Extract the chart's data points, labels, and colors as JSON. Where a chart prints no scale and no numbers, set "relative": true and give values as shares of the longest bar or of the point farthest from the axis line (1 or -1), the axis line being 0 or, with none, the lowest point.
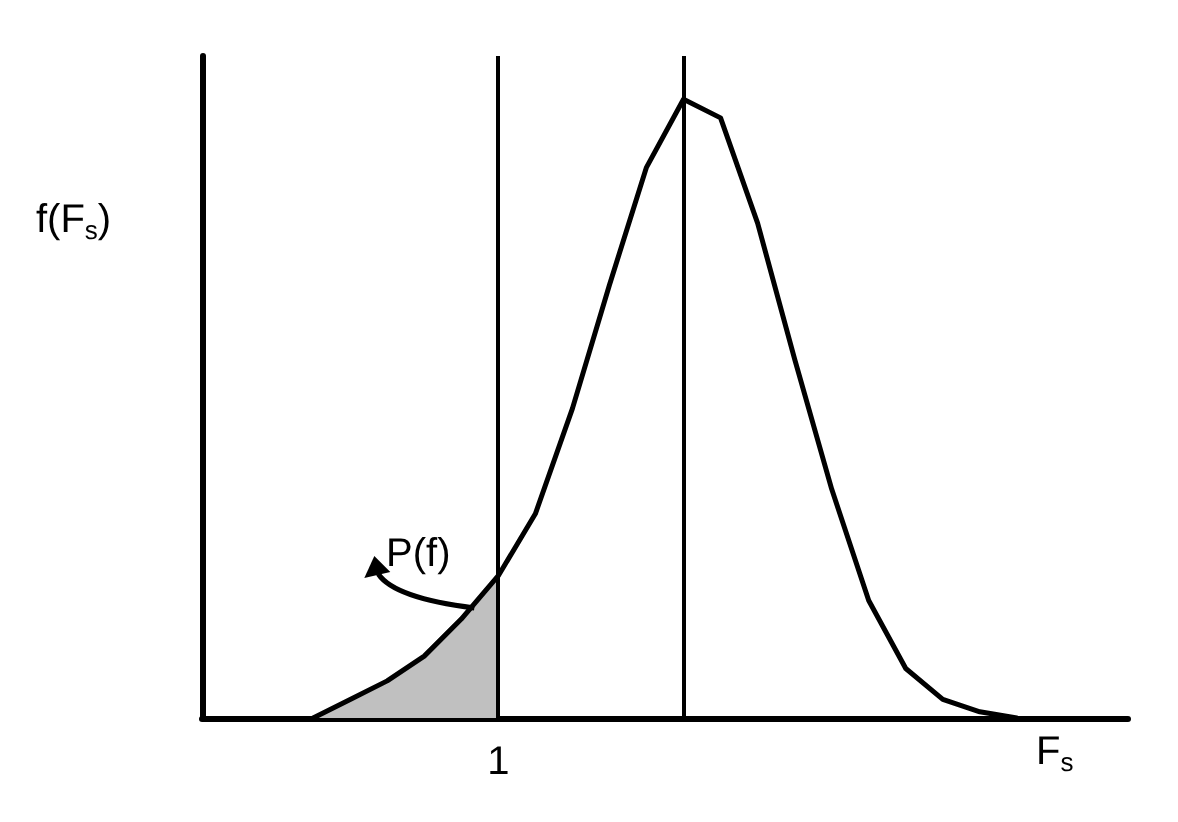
{
  "chart_data": {
    "type": "line",
    "relative": true,
    "xlabel": "F$_{s}$",
    "ylabel": "f(F$_{s}$)",
    "marker": "none",
    "categories": [
      null,
      null,
      null,
      null,
      null,
      null,
      null,
      null,
      null,
      null,
      null,
      null,
      null,
      null,
      null,
      null,
      null,
      null,
      null,
      null,
      null,
      null,
      null,
      null,
      null,
      null
    ],
    "series": [
      {
        "color": "#000000",
        "values": [
          null,
          null,
          null,
          0,
          0.03,
          0.06,
          0.1,
          0.16,
          0.23,
          0.33,
          0.5,
          0.7,
          0.89,
          1,
          0.97,
          0.8,
          0.58,
          0.37,
          0.19,
          0.08,
          0.03,
          0.01,
          0,
          null,
          null,
          null
        ],
        "lower": [
          null,
          null,
          null,
          0,
          0,
          0,
          0,
          0,
          0,
          null,
          null,
          null,
          null,
          null,
          null,
          null,
          null,
          null,
          null,
          null,
          null,
          null,
          null,
          null,
          null,
          null
        ],
        "upper": [
          null,
          null,
          null,
          0,
          0.03,
          0.06,
          0.1,
          0.16,
          0.23,
          null,
          null,
          null,
          null,
          null,
          null,
          null,
          null,
          null,
          null,
          null,
          null,
          null,
          null,
          null,
          null,
          null
        ]
      }
    ],
    "annotations": [
      "P(f)",
      "1"
    ]
  }
}
